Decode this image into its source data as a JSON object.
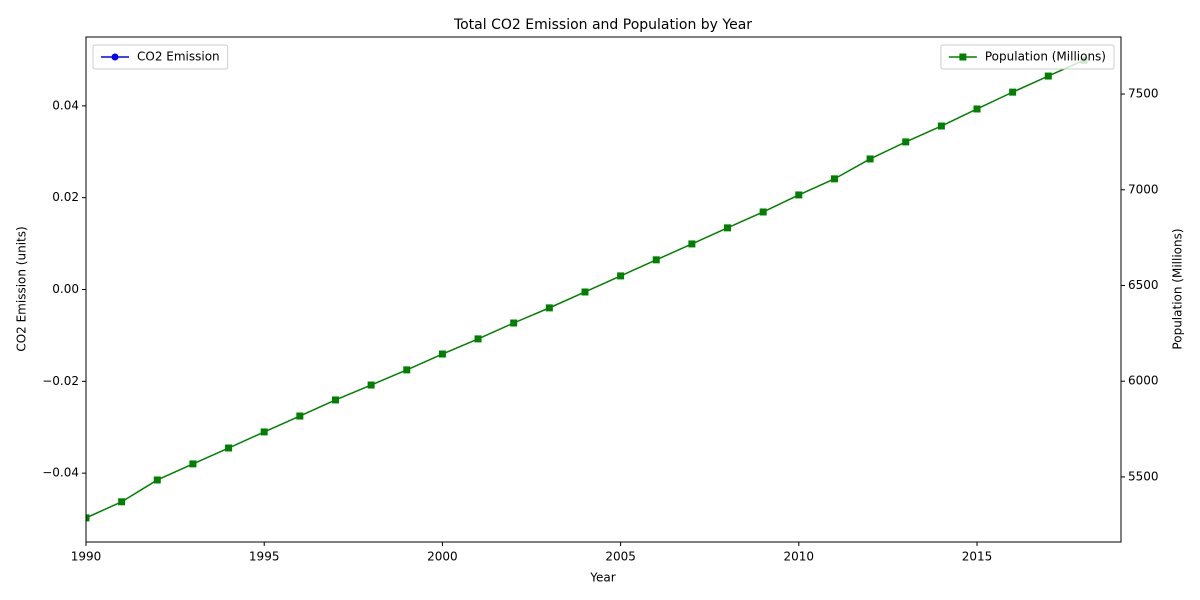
{
  "chart_data": {
    "type": "line",
    "title": "Total CO2 Emission and Population by Year",
    "xlabel": "Year",
    "ylabel": "CO2 Emission (units)",
    "y2label": "Population (Millions)",
    "x": [
      1990,
      1991,
      1992,
      1993,
      1994,
      1995,
      1996,
      1997,
      1998,
      1999,
      2000,
      2001,
      2002,
      2003,
      2004,
      2005,
      2006,
      2007,
      2008,
      2009,
      2010,
      2011,
      2012,
      2013,
      2014,
      2015,
      2016,
      2017,
      2018
    ],
    "series": [
      {
        "name": "CO2 Emission",
        "color": "#0000ff",
        "marker": "circle",
        "legend": "upper left",
        "values": [
          null,
          null,
          null,
          null,
          null,
          null,
          null,
          null,
          null,
          null,
          null,
          null,
          null,
          null,
          null,
          null,
          null,
          null,
          null,
          null,
          null,
          null,
          null,
          null,
          null,
          null,
          null,
          null,
          null
        ]
      },
      {
        "name": "Population (Millions)",
        "color": "#008000",
        "marker": "square",
        "legend": "upper right",
        "axis": "y2",
        "values": [
          5286,
          5370,
          5484,
          5568,
          5651,
          5735,
          5818,
          5902,
          5980,
          6059,
          6142,
          6221,
          6304,
          6383,
          6466,
          6550,
          6634,
          6717,
          6801,
          6884,
          6973,
          7057,
          7161,
          7250,
          7333,
          7422,
          7510,
          7594,
          7677
        ]
      }
    ],
    "xlim": [
      1990,
      2019.04
    ],
    "xticks": [
      1990,
      1995,
      2000,
      2005,
      2010,
      2015
    ],
    "ylim": [
      -0.055,
      0.055
    ],
    "yticks": [
      {
        "value": -0.04,
        "label": "−0.04"
      },
      {
        "value": -0.02,
        "label": "−0.02"
      },
      {
        "value": 0,
        "label": "0.00"
      },
      {
        "value": 0.02,
        "label": "0.02"
      },
      {
        "value": 0.04,
        "label": "0.04"
      }
    ],
    "y2lim": [
      5160,
      7798
    ],
    "y2ticks": [
      5500,
      6000,
      6500,
      7000,
      7500
    ]
  }
}
